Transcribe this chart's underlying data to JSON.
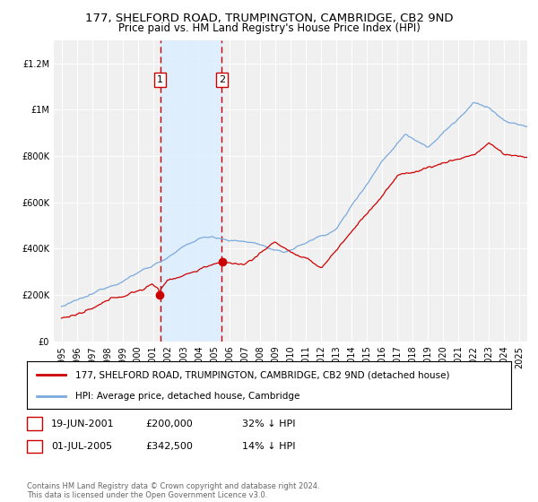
{
  "title": "177, SHELFORD ROAD, TRUMPINGTON, CAMBRIDGE, CB2 9ND",
  "subtitle": "Price paid vs. HM Land Registry's House Price Index (HPI)",
  "legend_line1": "177, SHELFORD ROAD, TRUMPINGTON, CAMBRIDGE, CB2 9ND (detached house)",
  "legend_line2": "HPI: Average price, detached house, Cambridge",
  "transaction1_date": "19-JUN-2001",
  "transaction1_price": 200000,
  "transaction1_label": "32% ↓ HPI",
  "transaction2_date": "01-JUL-2005",
  "transaction2_price": 342500,
  "transaction2_label": "14% ↓ HPI",
  "footnote": "Contains HM Land Registry data © Crown copyright and database right 2024.\nThis data is licensed under the Open Government Licence v3.0.",
  "line_color_red": "#cc0000",
  "line_color_blue": "#7aaadd",
  "shade_color": "#ddeeff",
  "background_color": "#f0f0f0",
  "transaction1_x": 2001.47,
  "transaction2_x": 2005.5,
  "ylim": [
    0,
    1300000
  ],
  "xlim": [
    1994.5,
    2025.5
  ],
  "yticks": [
    0,
    200000,
    400000,
    600000,
    800000,
    1000000,
    1200000
  ],
  "ytick_labels": [
    "£0",
    "£200K",
    "£400K",
    "£600K",
    "£800K",
    "£1M",
    "£1.2M"
  ]
}
